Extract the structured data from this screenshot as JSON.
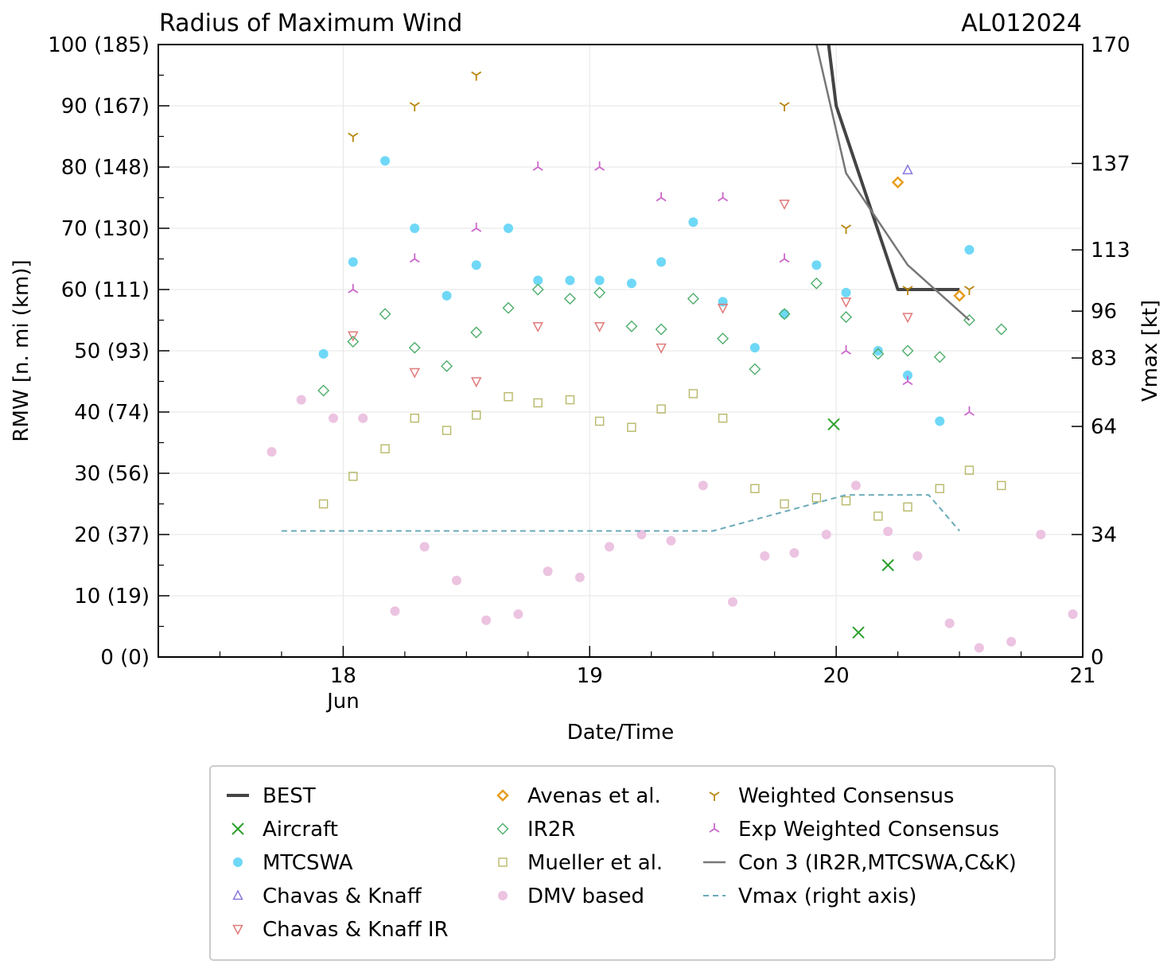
{
  "chart_data": {
    "type": "scatter",
    "title": "Radius of Maximum Wind",
    "storm_id": "AL012024",
    "xlabel": "Date/Time",
    "ylabel": "RMW [n. mi (km)]",
    "y2label": "Vmax [kt]",
    "xlim": [
      17.25,
      21.0
    ],
    "ylim": [
      0,
      100
    ],
    "y2lim": [
      0,
      170
    ],
    "grid": true,
    "legend_position": "bottom",
    "x_ticks": [
      {
        "value": 18,
        "label": "18",
        "sublabel": "Jun"
      },
      {
        "value": 19,
        "label": "19",
        "sublabel": ""
      },
      {
        "value": 20,
        "label": "20",
        "sublabel": ""
      },
      {
        "value": 21,
        "label": "21",
        "sublabel": ""
      }
    ],
    "y_ticks": [
      {
        "value": 0,
        "label": "0 (0)"
      },
      {
        "value": 10,
        "label": "10 (19)"
      },
      {
        "value": 20,
        "label": "20 (37)"
      },
      {
        "value": 30,
        "label": "30 (56)"
      },
      {
        "value": 40,
        "label": "40 (74)"
      },
      {
        "value": 50,
        "label": "50 (93)"
      },
      {
        "value": 60,
        "label": "60 (111)"
      },
      {
        "value": 70,
        "label": "70 (130)"
      },
      {
        "value": 80,
        "label": "80 (148)"
      },
      {
        "value": 90,
        "label": "90 (167)"
      },
      {
        "value": 100,
        "label": "100 (185)"
      }
    ],
    "y2_ticks": [
      {
        "value": 0,
        "label": "0"
      },
      {
        "value": 34,
        "label": "34"
      },
      {
        "value": 64,
        "label": "64"
      },
      {
        "value": 83,
        "label": "83"
      },
      {
        "value": 96,
        "label": "96"
      },
      {
        "value": 113,
        "label": "113"
      },
      {
        "value": 137,
        "label": "137"
      },
      {
        "value": 170,
        "label": "170"
      }
    ],
    "series": [
      {
        "name": "BEST",
        "kind": "line",
        "color": "#444444",
        "width": 4,
        "x": [
          19.96,
          20.0,
          20.25,
          20.5
        ],
        "y": [
          103,
          90,
          60,
          60
        ]
      },
      {
        "name": "Aircraft",
        "kind": "marker",
        "marker": "x",
        "color": "#2ca02c",
        "x": [
          19.99,
          20.09,
          20.21
        ],
        "y": [
          38,
          4,
          15
        ]
      },
      {
        "name": "MTCSWA",
        "kind": "marker",
        "marker": "dot",
        "color": "#6fd8f7",
        "x": [
          17.92,
          18.04,
          18.17,
          18.29,
          18.42,
          18.54,
          18.67,
          18.79,
          18.92,
          19.04,
          19.17,
          19.29,
          19.42,
          19.54,
          19.67,
          19.79,
          19.92,
          20.04,
          20.17,
          20.29,
          20.42,
          20.54
        ],
        "y": [
          49.5,
          64.5,
          81,
          70,
          59,
          64,
          70,
          61.5,
          61.5,
          61.5,
          61,
          64.5,
          71,
          58,
          50.5,
          56,
          64,
          59.5,
          50,
          46,
          38.5,
          66.5
        ]
      },
      {
        "name": "Chavas & Knaff",
        "kind": "marker",
        "marker": "triangle-up",
        "color": "#8877dd",
        "x": [
          20.29
        ],
        "y": [
          79.5
        ]
      },
      {
        "name": "Chavas & Knaff IR",
        "kind": "marker",
        "marker": "triangle-down",
        "color": "#e07a7a",
        "x": [
          18.04,
          18.29,
          18.54,
          18.79,
          19.04,
          19.29,
          19.54,
          19.79,
          20.04,
          20.29
        ],
        "y": [
          52.5,
          46.5,
          45,
          54,
          54,
          50.5,
          57,
          74,
          58,
          55.5
        ]
      },
      {
        "name": "Avenas et al.",
        "kind": "marker",
        "marker": "diamond",
        "color": "#e69d1e",
        "x": [
          20.25,
          20.5
        ],
        "y": [
          77.5,
          59
        ]
      },
      {
        "name": "IR2R",
        "kind": "marker",
        "marker": "diamond-open",
        "color": "#4fae6c",
        "x": [
          17.92,
          18.04,
          18.17,
          18.29,
          18.42,
          18.54,
          18.67,
          18.79,
          18.92,
          19.04,
          19.17,
          19.29,
          19.42,
          19.54,
          19.67,
          19.79,
          19.92,
          20.04,
          20.17,
          20.29,
          20.42,
          20.54,
          20.67
        ],
        "y": [
          43.5,
          51.5,
          56,
          50.5,
          47.5,
          53,
          57,
          60,
          58.5,
          59.5,
          54,
          53.5,
          58.5,
          52,
          47,
          56,
          61,
          55.5,
          49.5,
          50,
          49,
          55,
          53.5
        ]
      },
      {
        "name": "Mueller et al.",
        "kind": "marker",
        "marker": "square-open",
        "color": "#b8b86a",
        "x": [
          17.92,
          18.04,
          18.17,
          18.29,
          18.42,
          18.54,
          18.67,
          18.79,
          18.92,
          19.04,
          19.17,
          19.29,
          19.42,
          19.54,
          19.67,
          19.79,
          19.92,
          20.04,
          20.17,
          20.29,
          20.42,
          20.54,
          20.67
        ],
        "y": [
          25,
          29.5,
          34,
          39,
          37,
          39.5,
          42.5,
          41.5,
          42,
          38.5,
          37.5,
          40.5,
          43,
          39,
          27.5,
          25,
          26,
          25.5,
          23,
          24.5,
          27.5,
          30.5,
          28
        ]
      },
      {
        "name": "DMV based",
        "kind": "marker",
        "marker": "dot-faint",
        "color": "#ecc3e1",
        "x": [
          17.71,
          17.83,
          17.96,
          18.08,
          18.21,
          18.33,
          18.46,
          18.58,
          18.71,
          18.83,
          18.96,
          19.08,
          19.21,
          19.33,
          19.46,
          19.58,
          19.71,
          19.83,
          19.96,
          20.08,
          20.21,
          20.33,
          20.46,
          20.58,
          20.71,
          20.83,
          20.96
        ],
        "y": [
          33.5,
          42,
          39,
          39,
          7.5,
          18,
          12.5,
          6,
          7,
          14,
          13,
          18,
          20,
          19,
          28,
          9,
          16.5,
          17,
          20,
          28,
          20.5,
          16.5,
          5.5,
          1.5,
          2.5,
          20,
          7
        ]
      },
      {
        "name": "Weighted Consensus",
        "kind": "marker",
        "marker": "tri-down",
        "color": "#b8860b",
        "x": [
          18.04,
          18.29,
          18.54,
          19.79,
          20.04,
          20.29,
          20.54
        ],
        "y": [
          85,
          90,
          95,
          90,
          70,
          60,
          60
        ]
      },
      {
        "name": "Exp Weighted Consensus",
        "kind": "marker",
        "marker": "tri-up",
        "color": "#cc66cc",
        "x": [
          18.04,
          18.29,
          18.54,
          18.79,
          19.04,
          19.29,
          19.54,
          19.79,
          20.04,
          20.29,
          20.54
        ],
        "y": [
          60,
          65,
          70,
          80,
          80,
          75,
          75,
          65,
          50,
          45,
          40
        ]
      },
      {
        "name": "Con 3 (IR2R,MTCSWA,C&K)",
        "kind": "line",
        "color": "#777777",
        "width": 2.5,
        "x": [
          19.92,
          20.04,
          20.29,
          20.54
        ],
        "y": [
          100,
          79,
          64,
          55
        ]
      },
      {
        "name": "Vmax (right axis)",
        "kind": "line-dashed",
        "color": "#6aaab9",
        "width": 2,
        "axis": "right",
        "x": [
          17.75,
          19.5,
          20.04,
          20.375,
          20.5
        ],
        "y": [
          35,
          35,
          45,
          45,
          35
        ]
      }
    ]
  }
}
